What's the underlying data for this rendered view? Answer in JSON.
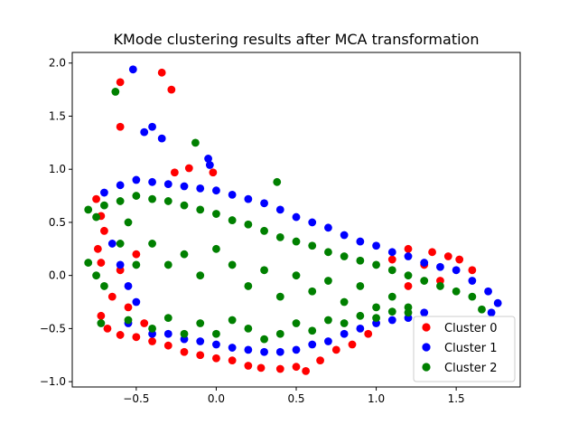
{
  "chart_data": {
    "type": "scatter",
    "title": "KMode clustering results after MCA transformation",
    "xlabel": "",
    "ylabel": "",
    "xlim": [
      -0.9,
      1.9
    ],
    "ylim": [
      -1.05,
      2.1
    ],
    "xticks": [
      -0.5,
      0.0,
      0.5,
      1.0,
      1.5
    ],
    "xtick_labels": [
      "−0.5",
      "0.0",
      "0.5",
      "1.0",
      "1.5"
    ],
    "yticks": [
      -1.0,
      -0.5,
      0.0,
      0.5,
      1.0,
      1.5,
      2.0
    ],
    "ytick_labels": [
      "−1.0",
      "−0.5",
      "0.0",
      "0.5",
      "1.0",
      "1.5",
      "2.0"
    ],
    "grid": false,
    "legend_position": "lower-right",
    "series": [
      {
        "name": "Cluster 0",
        "color": "#ff0000",
        "points": [
          [
            -0.6,
            1.82
          ],
          [
            -0.34,
            1.91
          ],
          [
            -0.28,
            1.75
          ],
          [
            -0.6,
            1.4
          ],
          [
            -0.26,
            0.97
          ],
          [
            -0.17,
            1.01
          ],
          [
            -0.02,
            0.97
          ],
          [
            -0.75,
            0.72
          ],
          [
            -0.72,
            0.56
          ],
          [
            -0.7,
            0.42
          ],
          [
            -0.74,
            0.25
          ],
          [
            -0.72,
            0.12
          ],
          [
            -0.72,
            -0.38
          ],
          [
            -0.68,
            -0.5
          ],
          [
            -0.6,
            -0.56
          ],
          [
            -0.5,
            -0.58
          ],
          [
            -0.4,
            -0.62
          ],
          [
            -0.3,
            -0.66
          ],
          [
            -0.2,
            -0.72
          ],
          [
            -0.1,
            -0.75
          ],
          [
            0.0,
            -0.78
          ],
          [
            0.1,
            -0.8
          ],
          [
            0.2,
            -0.85
          ],
          [
            0.28,
            -0.87
          ],
          [
            0.4,
            -0.88
          ],
          [
            0.5,
            -0.86
          ],
          [
            0.56,
            -0.9
          ],
          [
            0.65,
            -0.8
          ],
          [
            0.75,
            -0.7
          ],
          [
            0.85,
            -0.65
          ],
          [
            0.95,
            -0.55
          ],
          [
            -0.65,
            -0.2
          ],
          [
            -0.55,
            -0.3
          ],
          [
            -0.5,
            0.2
          ],
          [
            -0.6,
            0.05
          ],
          [
            -0.45,
            -0.45
          ],
          [
            1.2,
            0.25
          ],
          [
            1.35,
            0.22
          ],
          [
            1.45,
            0.18
          ],
          [
            1.3,
            0.1
          ],
          [
            1.1,
            0.15
          ],
          [
            1.52,
            0.15
          ],
          [
            1.6,
            0.05
          ],
          [
            1.4,
            -0.05
          ],
          [
            1.2,
            -0.1
          ]
        ]
      },
      {
        "name": "Cluster 1",
        "color": "#0000ff",
        "points": [
          [
            -0.52,
            1.94
          ],
          [
            -0.45,
            1.35
          ],
          [
            -0.4,
            1.4
          ],
          [
            -0.34,
            1.29
          ],
          [
            -0.05,
            1.1
          ],
          [
            -0.04,
            1.04
          ],
          [
            -0.7,
            0.78
          ],
          [
            -0.6,
            0.85
          ],
          [
            -0.5,
            0.9
          ],
          [
            -0.4,
            0.88
          ],
          [
            -0.3,
            0.86
          ],
          [
            -0.2,
            0.84
          ],
          [
            -0.1,
            0.82
          ],
          [
            0.0,
            0.8
          ],
          [
            0.1,
            0.76
          ],
          [
            0.2,
            0.72
          ],
          [
            0.3,
            0.68
          ],
          [
            0.4,
            0.62
          ],
          [
            0.5,
            0.55
          ],
          [
            0.6,
            0.5
          ],
          [
            0.7,
            0.45
          ],
          [
            0.8,
            0.38
          ],
          [
            0.9,
            0.32
          ],
          [
            1.0,
            0.28
          ],
          [
            1.1,
            0.22
          ],
          [
            1.2,
            0.18
          ],
          [
            1.3,
            0.12
          ],
          [
            1.4,
            0.08
          ],
          [
            1.5,
            0.05
          ],
          [
            1.6,
            -0.05
          ],
          [
            1.7,
            -0.15
          ],
          [
            1.76,
            -0.26
          ],
          [
            1.72,
            -0.35
          ],
          [
            -0.65,
            0.3
          ],
          [
            -0.6,
            0.1
          ],
          [
            -0.55,
            -0.1
          ],
          [
            -0.5,
            -0.25
          ],
          [
            -0.55,
            -0.45
          ],
          [
            -0.4,
            -0.55
          ],
          [
            -0.3,
            -0.55
          ],
          [
            -0.2,
            -0.6
          ],
          [
            -0.1,
            -0.62
          ],
          [
            0.0,
            -0.65
          ],
          [
            0.1,
            -0.68
          ],
          [
            0.2,
            -0.7
          ],
          [
            0.3,
            -0.72
          ],
          [
            0.4,
            -0.72
          ],
          [
            0.5,
            -0.7
          ],
          [
            0.6,
            -0.65
          ],
          [
            0.7,
            -0.62
          ],
          [
            0.8,
            -0.55
          ],
          [
            0.9,
            -0.5
          ],
          [
            1.0,
            -0.45
          ],
          [
            1.1,
            -0.42
          ],
          [
            1.2,
            -0.4
          ],
          [
            1.3,
            -0.35
          ]
        ]
      },
      {
        "name": "Cluster 2",
        "color": "#008000",
        "points": [
          [
            -0.63,
            1.73
          ],
          [
            -0.13,
            1.25
          ],
          [
            0.38,
            0.88
          ],
          [
            -0.8,
            0.62
          ],
          [
            -0.75,
            0.55
          ],
          [
            -0.7,
            0.66
          ],
          [
            -0.6,
            0.7
          ],
          [
            -0.5,
            0.75
          ],
          [
            -0.4,
            0.72
          ],
          [
            -0.3,
            0.7
          ],
          [
            -0.2,
            0.66
          ],
          [
            -0.1,
            0.62
          ],
          [
            0.0,
            0.58
          ],
          [
            0.1,
            0.52
          ],
          [
            0.2,
            0.48
          ],
          [
            0.3,
            0.42
          ],
          [
            0.4,
            0.36
          ],
          [
            0.5,
            0.32
          ],
          [
            0.6,
            0.28
          ],
          [
            0.7,
            0.22
          ],
          [
            0.8,
            0.18
          ],
          [
            0.9,
            0.14
          ],
          [
            1.0,
            0.1
          ],
          [
            1.1,
            0.05
          ],
          [
            1.2,
            0.0
          ],
          [
            1.3,
            -0.05
          ],
          [
            1.4,
            -0.1
          ],
          [
            1.5,
            -0.15
          ],
          [
            1.6,
            -0.2
          ],
          [
            1.66,
            -0.32
          ],
          [
            -0.8,
            0.12
          ],
          [
            -0.75,
            0.0
          ],
          [
            -0.7,
            -0.1
          ],
          [
            -0.6,
            0.3
          ],
          [
            -0.55,
            0.5
          ],
          [
            -0.5,
            0.1
          ],
          [
            -0.4,
            0.3
          ],
          [
            -0.3,
            0.1
          ],
          [
            -0.2,
            0.2
          ],
          [
            -0.1,
            0.0
          ],
          [
            0.0,
            0.25
          ],
          [
            0.1,
            0.1
          ],
          [
            0.2,
            -0.1
          ],
          [
            0.3,
            0.05
          ],
          [
            0.4,
            -0.2
          ],
          [
            0.5,
            0.0
          ],
          [
            0.6,
            -0.15
          ],
          [
            0.7,
            -0.05
          ],
          [
            0.8,
            -0.25
          ],
          [
            0.9,
            -0.1
          ],
          [
            1.0,
            -0.3
          ],
          [
            1.1,
            -0.2
          ],
          [
            1.2,
            -0.35
          ],
          [
            -0.72,
            -0.45
          ],
          [
            -0.55,
            -0.42
          ],
          [
            -0.4,
            -0.5
          ],
          [
            -0.3,
            -0.4
          ],
          [
            -0.2,
            -0.55
          ],
          [
            -0.1,
            -0.45
          ],
          [
            0.0,
            -0.55
          ],
          [
            0.1,
            -0.42
          ],
          [
            0.2,
            -0.5
          ],
          [
            0.3,
            -0.6
          ],
          [
            0.4,
            -0.55
          ],
          [
            0.5,
            -0.45
          ],
          [
            0.6,
            -0.52
          ],
          [
            0.7,
            -0.42
          ],
          [
            0.8,
            -0.45
          ],
          [
            0.9,
            -0.38
          ],
          [
            1.0,
            -0.4
          ],
          [
            1.1,
            -0.34
          ],
          [
            1.2,
            -0.3
          ]
        ]
      }
    ]
  }
}
